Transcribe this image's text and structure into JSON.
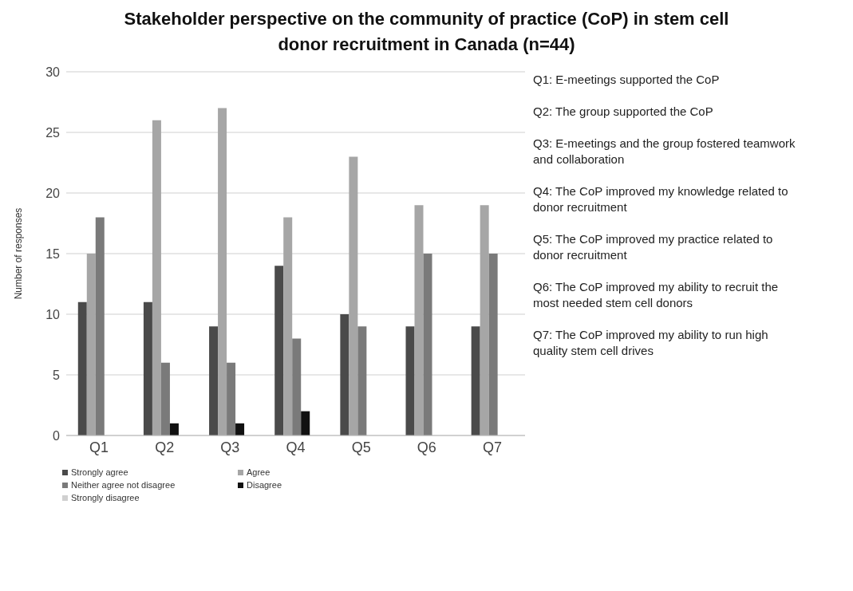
{
  "chart_data": {
    "type": "bar",
    "title": "Stakeholder perspective on the community of practice (CoP) in stem cell donor recruitment in Canada (n=44)",
    "ylabel": "Number of responses",
    "categories": [
      "Q1",
      "Q2",
      "Q3",
      "Q4",
      "Q5",
      "Q6",
      "Q7"
    ],
    "series": [
      {
        "name": "Strongly agree",
        "color": "#4a4a4a",
        "values": [
          11,
          11,
          9,
          14,
          10,
          9,
          9
        ]
      },
      {
        "name": "Agree",
        "color": "#a6a6a6",
        "values": [
          15,
          26,
          27,
          18,
          23,
          19,
          19
        ]
      },
      {
        "name": "Neither agree not disagree",
        "color": "#7a7a7a",
        "values": [
          18,
          6,
          6,
          8,
          9,
          15,
          15
        ]
      },
      {
        "name": "Disagree",
        "color": "#111111",
        "values": [
          0,
          1,
          1,
          2,
          0,
          0,
          0
        ]
      },
      {
        "name": "Strongly disagree",
        "color": "#d0d0d0",
        "values": [
          0,
          0,
          0,
          0,
          0,
          0,
          0
        ]
      }
    ],
    "ylim": [
      0,
      30
    ],
    "yticks": [
      0,
      5,
      10,
      15,
      20,
      25,
      30
    ],
    "grid": "y",
    "legend": "bottom",
    "annotations": [
      "Q1: E-meetings supported the CoP",
      "Q2: The group supported the CoP",
      "Q3: E-meetings and the group fostered teamwork and collaboration",
      "Q4: The CoP improved my knowledge related to donor recruitment",
      "Q5: The CoP improved my practice related to donor recruitment",
      "Q6: The CoP improved my ability to recruit the most needed stem cell donors",
      "Q7: The CoP improved my ability to run high quality stem cell drives"
    ]
  }
}
